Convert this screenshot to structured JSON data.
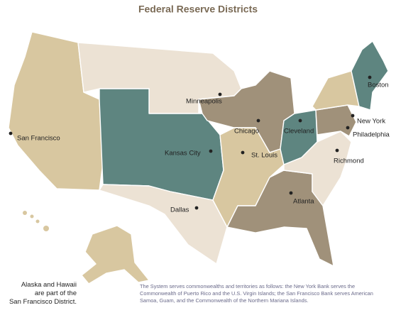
{
  "title": "Federal Reserve Districts",
  "cities": [
    "San Francisco",
    "Minneapolis",
    "Kansas City",
    "Dallas",
    "Chicago",
    "St. Louis",
    "Cleveland",
    "Atlanta",
    "Richmond",
    "Philadelphia",
    "New York",
    "Boston"
  ],
  "alaska_note": [
    "Alaska and Hawaii",
    "are part of the",
    "San Francisco District."
  ],
  "territories_note": "The System serves commonwealths and territories as follows: the New York Bank serves the Commonwealth of Puerto Rico and the U.S. Virgin  Islands; the San Francisco Bank serves American Samoa, Guam, and the Commonwealth of the Northern Mariana Islands."
}
